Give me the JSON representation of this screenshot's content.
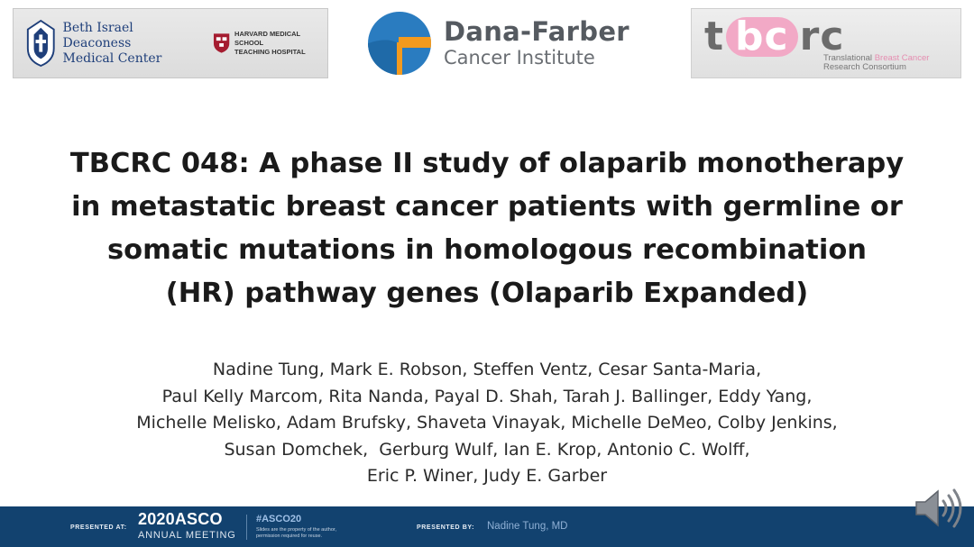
{
  "logos": {
    "bidmc": {
      "name_line1": "Beth Israel Deaconess",
      "name_line2": "Medical Center",
      "affil_line1": "HARVARD MEDICAL SCHOOL",
      "affil_line2": "TEACHING HOSPITAL"
    },
    "dfci": {
      "name": "Dana-Farber",
      "subname": "Cancer Institute",
      "colors": {
        "blue": "#2a7cc0",
        "orange": "#f39a1e"
      }
    },
    "tbcrc": {
      "mark_t": "t",
      "mark_bc": "bc",
      "mark_rc": "rc",
      "tag_line1_a": "Translational ",
      "tag_line1_b": "Breast Cancer",
      "tag_line2": "Research Consortium",
      "colors": {
        "pink": "#f2a9c6",
        "gray": "#6b6b6b"
      }
    }
  },
  "slide": {
    "title": "TBCRC 048: A phase II study of olaparib monotherapy\nin metastatic breast cancer patients with germline or\nsomatic mutations in homologous recombination\n(HR) pathway genes (Olaparib Expanded)",
    "authors": [
      "Nadine Tung, Mark E. Robson, Steffen Ventz, Cesar Santa-Maria,",
      "Paul Kelly Marcom, Rita Nanda, Payal D. Shah, Tarah J. Ballinger, Eddy Yang,",
      "Michelle Melisko, Adam Brufsky, Shaveta Vinayak, Michelle DeMeo, Colby Jenkins,",
      "Susan Domchek,  Gerburg Wulf, Ian E. Krop, Antonio C. Wolff,",
      "Eric P. Winer, Judy E. Garber"
    ]
  },
  "footer": {
    "presented_at_label": "PRESENTED AT:",
    "meeting_year_name": "2020ASCO",
    "meeting_sub": "ANNUAL MEETING",
    "hashtag": "#ASCO20",
    "disclaimer_line1": "Slides are the property of the author,",
    "disclaimer_line2": "permission required for reuse.",
    "presented_by_label": "PRESENTED BY:",
    "presenter": "Nadine Tung, MD",
    "bar_color": "#12426f"
  },
  "icons": {
    "audio": "speaker-icon"
  }
}
